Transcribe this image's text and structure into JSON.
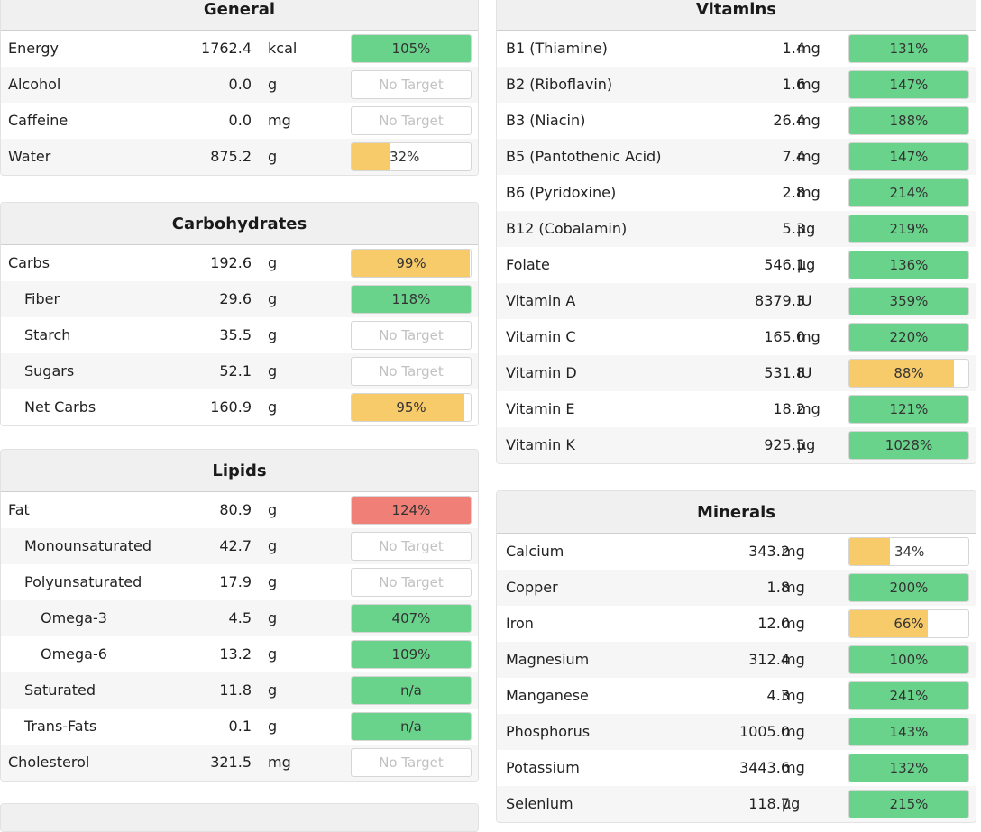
{
  "general": {
    "title": "General",
    "rows": [
      {
        "name": "Energy",
        "amount": "1762.4",
        "unit": "kcal",
        "pct": "105%",
        "color": "green",
        "fill": 1.0,
        "indent": 0
      },
      {
        "name": "Alcohol",
        "amount": "0.0",
        "unit": "g",
        "pct": "No Target",
        "color": "none",
        "fill": 0,
        "indent": 0
      },
      {
        "name": "Caffeine",
        "amount": "0.0",
        "unit": "mg",
        "pct": "No Target",
        "color": "none",
        "fill": 0,
        "indent": 0
      },
      {
        "name": "Water",
        "amount": "875.2",
        "unit": "g",
        "pct": "32%",
        "color": "yellow",
        "fill": 0.32,
        "indent": 0
      }
    ]
  },
  "carbohydrates": {
    "title": "Carbohydrates",
    "rows": [
      {
        "name": "Carbs",
        "amount": "192.6",
        "unit": "g",
        "pct": "99%",
        "color": "yellow",
        "fill": 0.99,
        "indent": 0
      },
      {
        "name": "Fiber",
        "amount": "29.6",
        "unit": "g",
        "pct": "118%",
        "color": "green",
        "fill": 1.0,
        "indent": 1
      },
      {
        "name": "Starch",
        "amount": "35.5",
        "unit": "g",
        "pct": "No Target",
        "color": "none",
        "fill": 0,
        "indent": 1
      },
      {
        "name": "Sugars",
        "amount": "52.1",
        "unit": "g",
        "pct": "No Target",
        "color": "none",
        "fill": 0,
        "indent": 1
      },
      {
        "name": "Net Carbs",
        "amount": "160.9",
        "unit": "g",
        "pct": "95%",
        "color": "yellow",
        "fill": 0.95,
        "indent": 1
      }
    ]
  },
  "lipids": {
    "title": "Lipids",
    "rows": [
      {
        "name": "Fat",
        "amount": "80.9",
        "unit": "g",
        "pct": "124%",
        "color": "red",
        "fill": 1.0,
        "indent": 0
      },
      {
        "name": "Monounsaturated",
        "amount": "42.7",
        "unit": "g",
        "pct": "No Target",
        "color": "none",
        "fill": 0,
        "indent": 1
      },
      {
        "name": "Polyunsaturated",
        "amount": "17.9",
        "unit": "g",
        "pct": "No Target",
        "color": "none",
        "fill": 0,
        "indent": 1
      },
      {
        "name": "Omega-3",
        "amount": "4.5",
        "unit": "g",
        "pct": "407%",
        "color": "green",
        "fill": 1.0,
        "indent": 2
      },
      {
        "name": "Omega-6",
        "amount": "13.2",
        "unit": "g",
        "pct": "109%",
        "color": "green",
        "fill": 1.0,
        "indent": 2
      },
      {
        "name": "Saturated",
        "amount": "11.8",
        "unit": "g",
        "pct": "n/a",
        "color": "green",
        "fill": 1.0,
        "indent": 1
      },
      {
        "name": "Trans-Fats",
        "amount": "0.1",
        "unit": "g",
        "pct": "n/a",
        "color": "green",
        "fill": 1.0,
        "indent": 1
      },
      {
        "name": "Cholesterol",
        "amount": "321.5",
        "unit": "mg",
        "pct": "No Target",
        "color": "none",
        "fill": 0,
        "indent": 0
      }
    ]
  },
  "vitamins": {
    "title": "Vitamins",
    "rows": [
      {
        "name": "B1 (Thiamine)",
        "amount": "1.4",
        "unit": "mg",
        "pct": "131%",
        "color": "green",
        "fill": 1.0,
        "indent": 0
      },
      {
        "name": "B2 (Riboflavin)",
        "amount": "1.6",
        "unit": "mg",
        "pct": "147%",
        "color": "green",
        "fill": 1.0,
        "indent": 0
      },
      {
        "name": "B3 (Niacin)",
        "amount": "26.4",
        "unit": "mg",
        "pct": "188%",
        "color": "green",
        "fill": 1.0,
        "indent": 0
      },
      {
        "name": "B5 (Pantothenic Acid)",
        "amount": "7.4",
        "unit": "mg",
        "pct": "147%",
        "color": "green",
        "fill": 1.0,
        "indent": 0
      },
      {
        "name": "B6 (Pyridoxine)",
        "amount": "2.8",
        "unit": "mg",
        "pct": "214%",
        "color": "green",
        "fill": 1.0,
        "indent": 0
      },
      {
        "name": "B12 (Cobalamin)",
        "amount": "5.3",
        "unit": "µg",
        "pct": "219%",
        "color": "green",
        "fill": 1.0,
        "indent": 0
      },
      {
        "name": "Folate",
        "amount": "546.1",
        "unit": "µg",
        "pct": "136%",
        "color": "green",
        "fill": 1.0,
        "indent": 0
      },
      {
        "name": "Vitamin A",
        "amount": "8379.3",
        "unit": "IU",
        "pct": "359%",
        "color": "green",
        "fill": 1.0,
        "indent": 0
      },
      {
        "name": "Vitamin C",
        "amount": "165.0",
        "unit": "mg",
        "pct": "220%",
        "color": "green",
        "fill": 1.0,
        "indent": 0
      },
      {
        "name": "Vitamin D",
        "amount": "531.8",
        "unit": "IU",
        "pct": "88%",
        "color": "yellow",
        "fill": 0.88,
        "indent": 0
      },
      {
        "name": "Vitamin E",
        "amount": "18.2",
        "unit": "mg",
        "pct": "121%",
        "color": "green",
        "fill": 1.0,
        "indent": 0
      },
      {
        "name": "Vitamin K",
        "amount": "925.5",
        "unit": "µg",
        "pct": "1028%",
        "color": "green",
        "fill": 1.0,
        "indent": 0
      }
    ]
  },
  "minerals": {
    "title": "Minerals",
    "rows": [
      {
        "name": "Calcium",
        "amount": "343.2",
        "unit": "mg",
        "pct": "34%",
        "color": "yellow",
        "fill": 0.34,
        "indent": 0
      },
      {
        "name": "Copper",
        "amount": "1.8",
        "unit": "mg",
        "pct": "200%",
        "color": "green",
        "fill": 1.0,
        "indent": 0
      },
      {
        "name": "Iron",
        "amount": "12.0",
        "unit": "mg",
        "pct": "66%",
        "color": "yellow",
        "fill": 0.66,
        "indent": 0
      },
      {
        "name": "Magnesium",
        "amount": "312.4",
        "unit": "mg",
        "pct": "100%",
        "color": "green",
        "fill": 1.0,
        "indent": 0
      },
      {
        "name": "Manganese",
        "amount": "4.3",
        "unit": "mg",
        "pct": "241%",
        "color": "green",
        "fill": 1.0,
        "indent": 0
      },
      {
        "name": "Phosphorus",
        "amount": "1005.0",
        "unit": "mg",
        "pct": "143%",
        "color": "green",
        "fill": 1.0,
        "indent": 0
      },
      {
        "name": "Potassium",
        "amount": "3443.6",
        "unit": "mg",
        "pct": "132%",
        "color": "green",
        "fill": 1.0,
        "indent": 0
      },
      {
        "name": "Selenium",
        "amount": "118.7",
        "unit": "µg",
        "pct": "215%",
        "color": "green",
        "fill": 1.0,
        "indent": 0
      }
    ]
  }
}
